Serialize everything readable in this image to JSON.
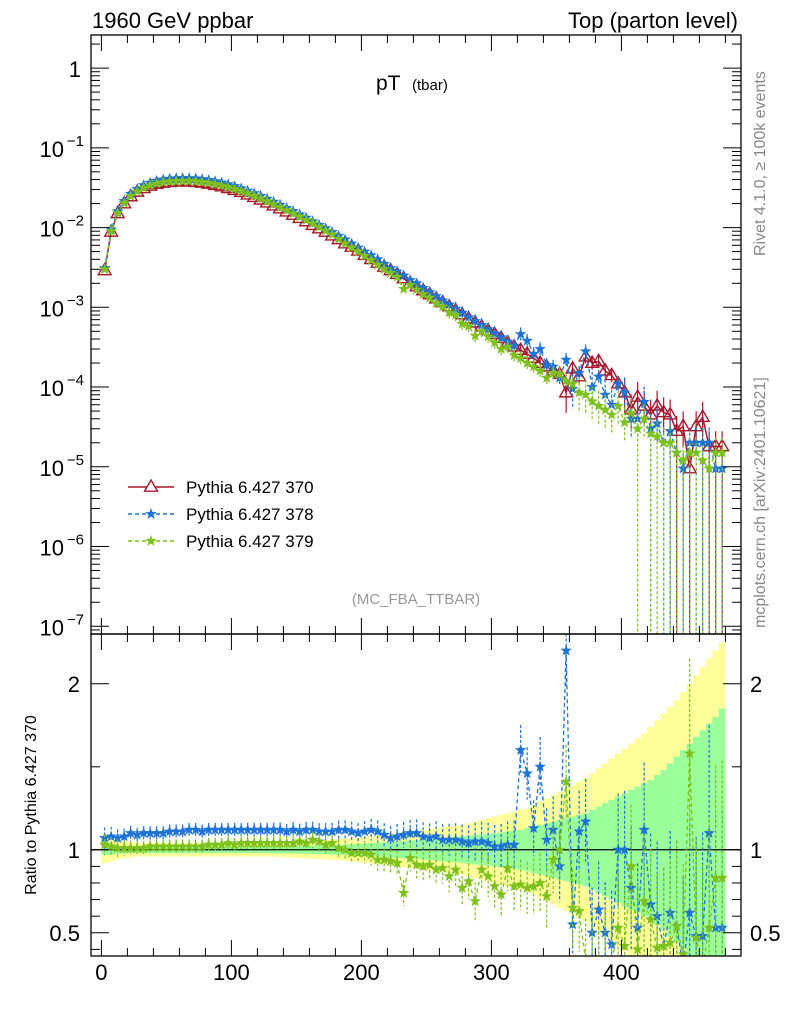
{
  "header": {
    "left": "1960 GeV ppbar",
    "right": "Top (parton level)"
  },
  "side_labels": {
    "rivet": "Rivet 4.1.0, ≥ 100k events",
    "mcplots": "mcplots.cern.ch [arXiv:2401.10621]"
  },
  "colors": {
    "s370": "#a8162c",
    "s378": "#1d74d6",
    "s379": "#7dc11c",
    "band_outer": "#ffff99",
    "band_inner": "#99ff99"
  },
  "chart_data": [
    {
      "panel": "main",
      "type": "line",
      "title": "pT",
      "title_sub": "(tbar)",
      "watermark": "(MC_FBA_TTBAR)",
      "xlabel": "",
      "ylabel": "",
      "yscale": "log",
      "xlim": [
        -8,
        492
      ],
      "ylim": [
        8e-08,
        2.6
      ],
      "ytick_labels": [
        {
          "base": "1",
          "exp": ""
        },
        {
          "base": "10",
          "exp": "−1"
        },
        {
          "base": "10",
          "exp": "−2"
        },
        {
          "base": "10",
          "exp": "−3"
        },
        {
          "base": "10",
          "exp": "−4"
        },
        {
          "base": "10",
          "exp": "−5"
        },
        {
          "base": "10",
          "exp": "−6"
        },
        {
          "base": "10",
          "exp": "−7"
        }
      ],
      "x": [
        2.5,
        7.5,
        12.5,
        17.5,
        22.5,
        27.5,
        32.5,
        37.5,
        42.5,
        47.5,
        52.5,
        57.5,
        62.5,
        67.5,
        72.5,
        77.5,
        82.5,
        87.5,
        92.5,
        97.5,
        102.5,
        107.5,
        112.5,
        117.5,
        122.5,
        127.5,
        132.5,
        137.5,
        142.5,
        147.5,
        152.5,
        157.5,
        162.5,
        167.5,
        172.5,
        177.5,
        182.5,
        187.5,
        192.5,
        197.5,
        202.5,
        207.5,
        212.5,
        217.5,
        222.5,
        227.5,
        232.5,
        237.5,
        242.5,
        247.5,
        252.5,
        257.5,
        262.5,
        267.5,
        272.5,
        277.5,
        282.5,
        287.5,
        292.5,
        297.5,
        302.5,
        307.5,
        312.5,
        317.5,
        322.5,
        327.5,
        332.5,
        337.5,
        342.5,
        347.5,
        352.5,
        357.5,
        362.5,
        367.5,
        372.5,
        377.5,
        382.5,
        387.5,
        392.5,
        397.5,
        402.5,
        407.5,
        412.5,
        417.5,
        422.5,
        427.5,
        432.5,
        437.5,
        442.5,
        447.5,
        452.5,
        457.5,
        462.5,
        467.5,
        472.5,
        477.5
      ],
      "series": [
        {
          "name": "Pythia 6.427 370",
          "marker": "triangle",
          "values": [
            0.0029,
            0.0088,
            0.015,
            0.02,
            0.0245,
            0.028,
            0.031,
            0.0332,
            0.035,
            0.0362,
            0.037,
            0.0374,
            0.0376,
            0.0374,
            0.037,
            0.0363,
            0.0352,
            0.034,
            0.0326,
            0.031,
            0.0294,
            0.0277,
            0.0258,
            0.024,
            0.0223,
            0.0205,
            0.0188,
            0.0173,
            0.0158,
            0.0144,
            0.0131,
            0.0119,
            0.0107,
            0.0097,
            0.0088,
            0.0079,
            0.0071,
            0.0063,
            0.0057,
            0.0051,
            0.0045,
            0.004,
            0.0036,
            0.0032,
            0.0029,
            0.0026,
            0.0023,
            0.002,
            0.00182,
            0.00162,
            0.00145,
            0.00128,
            0.00115,
            0.00102,
            0.00091,
            0.00081,
            0.00072,
            0.00064,
            0.00057,
            0.00051,
            0.00046,
            0.00041,
            0.00036,
            0.00032,
            0.00029,
            0.00026,
            0.00023,
            0.0002,
            0.00018,
            0.00016,
            0.000145,
            8.5e-05,
            0.00017,
            0.000135,
            0.00024,
            0.0002,
            0.00021,
            0.00016,
            0.00014,
            0.00011,
            8.5e-05,
            5.2e-05,
            7.5e-05,
            5.8e-05,
            4.5e-05,
            5.8e-05,
            4.8e-05,
            4.5e-05,
            2.8e-05,
            3.2e-05,
            9.5e-06,
            3.2e-05,
            4.2e-05,
            1.8e-05,
            1.8e-05,
            1.8e-05
          ]
        },
        {
          "name": "Pythia 6.427 378",
          "marker": "star",
          "values": [
            0.0031,
            0.0095,
            0.016,
            0.0215,
            0.0265,
            0.0305,
            0.034,
            0.0365,
            0.0385,
            0.04,
            0.041,
            0.0415,
            0.0418,
            0.0417,
            0.0413,
            0.0405,
            0.0394,
            0.0381,
            0.0366,
            0.0349,
            0.0331,
            0.0311,
            0.029,
            0.027,
            0.025,
            0.023,
            0.0211,
            0.0193,
            0.0176,
            0.0161,
            0.0146,
            0.0133,
            0.012,
            0.0108,
            0.0098,
            0.0088,
            0.0079,
            0.0071,
            0.0063,
            0.0056,
            0.005,
            0.0045,
            0.004,
            0.0035,
            0.0031,
            0.0028,
            0.0025,
            0.0022,
            0.002,
            0.00175,
            0.00155,
            0.00138,
            0.00122,
            0.00108,
            0.00096,
            0.00085,
            0.00075,
            0.00067,
            0.0006,
            0.00053,
            0.00047,
            0.00042,
            0.00037,
            0.00033,
            0.00046,
            0.00038,
            0.00026,
            0.0003,
            0.00019,
            0.00018,
            0.00013,
            0.00022,
            9.5e-05,
            0.00015,
            0.00028,
            0.0001,
            0.000135,
            8e-05,
            6e-05,
            0.00011,
            8.5e-05,
            4e-05,
            4e-05,
            6.5e-05,
            3e-05,
            3.5e-05,
            2e-05,
            2.8e-05,
            1.5e-05,
            9.5e-06,
            2e-05,
            2e-05,
            2e-05,
            2e-05,
            9.5e-06,
            9.5e-06
          ]
        },
        {
          "name": "Pythia 6.427 379",
          "marker": "star",
          "values": [
            0.003,
            0.009,
            0.0152,
            0.0203,
            0.0248,
            0.0284,
            0.0315,
            0.0338,
            0.0356,
            0.0369,
            0.0378,
            0.0382,
            0.0384,
            0.0383,
            0.0379,
            0.0372,
            0.0362,
            0.035,
            0.0336,
            0.0321,
            0.0304,
            0.0287,
            0.0268,
            0.0249,
            0.0231,
            0.0213,
            0.0196,
            0.018,
            0.0164,
            0.015,
            0.0137,
            0.0124,
            0.0113,
            0.0102,
            0.0091,
            0.0082,
            0.0072,
            0.0063,
            0.0056,
            0.005,
            0.0044,
            0.0039,
            0.0034,
            0.003,
            0.0027,
            0.0024,
            0.0017,
            0.0019,
            0.00166,
            0.00146,
            0.00132,
            0.00112,
            0.00102,
            0.00086,
            0.0008,
            0.00062,
            0.00058,
            0.00044,
            0.0005,
            0.00043,
            0.00036,
            0.0003,
            0.00032,
            0.00025,
            0.00023,
            0.0002,
            0.00018,
            0.00016,
            0.00013,
            0.00015,
            0.000145,
            0.00012,
            0.00011,
            8.5e-05,
            8e-05,
            6.6e-05,
            5.8e-05,
            5.2e-05,
            4.5e-05,
            5.8e-05,
            3.6e-05,
            4.7e-05,
            3e-05,
            4e-05,
            2.6e-05,
            2.4e-05,
            2e-05,
            2e-05,
            1.5e-05,
            1.2e-05,
            1.5e-05,
            1.5e-05,
            1.2e-05,
            9.5e-06,
            1.5e-05,
            1.5e-05
          ]
        }
      ],
      "legend": [
        "Pythia 6.427 370",
        "Pythia 6.427 378",
        "Pythia 6.427 379"
      ],
      "legend_position": "bottom-left"
    },
    {
      "panel": "ratio",
      "type": "line",
      "ylabel": "Ratio to Pythia 6.427 370",
      "xlim": [
        -8,
        492
      ],
      "ylim": [
        0.36,
        2.3
      ],
      "xtick_labels": [
        "0",
        "100",
        "200",
        "300",
        "400"
      ],
      "ytick_labels": [
        "0.5",
        "1",
        "2"
      ],
      "reference_line": 1,
      "bands": {
        "inner_halfwidth": [
          0.03,
          0.03,
          0.025,
          0.022,
          0.02,
          0.02,
          0.02,
          0.02,
          0.02,
          0.02,
          0.02,
          0.02,
          0.02,
          0.02,
          0.02,
          0.02,
          0.02,
          0.02,
          0.02,
          0.02,
          0.02,
          0.02,
          0.02,
          0.02,
          0.02,
          0.02,
          0.022,
          0.022,
          0.022,
          0.022,
          0.024,
          0.024,
          0.025,
          0.026,
          0.027,
          0.028,
          0.03,
          0.032,
          0.034,
          0.036,
          0.038,
          0.04,
          0.042,
          0.045,
          0.047,
          0.05,
          0.052,
          0.055,
          0.057,
          0.06,
          0.063,
          0.066,
          0.07,
          0.073,
          0.076,
          0.08,
          0.084,
          0.088,
          0.092,
          0.096,
          0.1,
          0.105,
          0.11,
          0.115,
          0.12,
          0.13,
          0.14,
          0.15,
          0.16,
          0.17,
          0.18,
          0.19,
          0.2,
          0.21,
          0.22,
          0.24,
          0.26,
          0.28,
          0.3,
          0.32,
          0.34,
          0.36,
          0.38,
          0.4,
          0.42,
          0.45,
          0.48,
          0.52,
          0.56,
          0.6,
          0.64,
          0.68,
          0.72,
          0.76,
          0.8,
          0.85
        ],
        "outer_halfwidth": [
          0.08,
          0.07,
          0.06,
          0.05,
          0.045,
          0.04,
          0.04,
          0.04,
          0.04,
          0.04,
          0.04,
          0.04,
          0.04,
          0.04,
          0.04,
          0.04,
          0.04,
          0.04,
          0.04,
          0.04,
          0.04,
          0.04,
          0.04,
          0.04,
          0.04,
          0.04,
          0.042,
          0.044,
          0.046,
          0.048,
          0.05,
          0.052,
          0.054,
          0.056,
          0.058,
          0.06,
          0.063,
          0.066,
          0.07,
          0.074,
          0.078,
          0.082,
          0.086,
          0.09,
          0.095,
          0.1,
          0.105,
          0.11,
          0.115,
          0.12,
          0.125,
          0.13,
          0.135,
          0.14,
          0.145,
          0.15,
          0.16,
          0.17,
          0.18,
          0.19,
          0.2,
          0.21,
          0.22,
          0.23,
          0.24,
          0.25,
          0.27,
          0.29,
          0.31,
          0.33,
          0.35,
          0.37,
          0.39,
          0.41,
          0.43,
          0.46,
          0.49,
          0.52,
          0.55,
          0.58,
          0.61,
          0.64,
          0.67,
          0.7,
          0.74,
          0.78,
          0.82,
          0.86,
          0.9,
          0.95,
          1.0,
          1.05,
          1.1,
          1.15,
          1.2,
          1.25
        ]
      },
      "series": [
        {
          "name": "Pythia 6.427 378",
          "values": [
            1.07,
            1.08,
            1.07,
            1.08,
            1.1,
            1.09,
            1.1,
            1.1,
            1.1,
            1.1,
            1.11,
            1.11,
            1.11,
            1.12,
            1.12,
            1.11,
            1.12,
            1.12,
            1.12,
            1.12,
            1.12,
            1.12,
            1.12,
            1.12,
            1.12,
            1.12,
            1.12,
            1.12,
            1.11,
            1.12,
            1.11,
            1.12,
            1.12,
            1.11,
            1.11,
            1.11,
            1.12,
            1.12,
            1.11,
            1.1,
            1.11,
            1.12,
            1.11,
            1.09,
            1.07,
            1.08,
            1.09,
            1.1,
            1.1,
            1.08,
            1.07,
            1.08,
            1.06,
            1.06,
            1.06,
            1.05,
            1.04,
            1.05,
            1.05,
            1.04,
            1.02,
            1.02,
            1.03,
            1.03,
            1.6,
            1.46,
            1.13,
            1.5,
            1.06,
            1.12,
            0.9,
            2.2,
            0.55,
            1.11,
            1.17,
            0.5,
            0.64,
            0.5,
            0.43,
            1.0,
            1.0,
            0.77,
            0.53,
            1.12,
            0.67,
            0.6,
            0.42,
            0.62,
            0.54,
            0.3,
            0.62,
            0.48,
            0.48,
            1.1,
            0.53,
            0.53
          ]
        },
        {
          "name": "Pythia 6.427 379",
          "values": [
            1.03,
            1.02,
            1.01,
            1.01,
            1.01,
            1.01,
            1.01,
            1.02,
            1.02,
            1.02,
            1.02,
            1.02,
            1.02,
            1.02,
            1.02,
            1.02,
            1.03,
            1.03,
            1.03,
            1.04,
            1.03,
            1.04,
            1.04,
            1.04,
            1.04,
            1.04,
            1.04,
            1.04,
            1.04,
            1.04,
            1.05,
            1.04,
            1.06,
            1.05,
            1.03,
            1.04,
            1.01,
            1.0,
            0.98,
            0.98,
            0.98,
            0.97,
            0.94,
            0.94,
            0.93,
            0.92,
            0.74,
            0.95,
            0.91,
            0.9,
            0.91,
            0.88,
            0.89,
            0.84,
            0.88,
            0.77,
            0.81,
            0.69,
            0.88,
            0.84,
            0.78,
            0.73,
            0.89,
            0.78,
            0.79,
            0.77,
            0.78,
            0.8,
            0.72,
            0.94,
            1.0,
            1.41,
            0.65,
            0.63,
            0.33,
            0.33,
            0.28,
            0.33,
            0.32,
            0.53,
            0.42,
            0.9,
            0.4,
            0.69,
            0.58,
            0.41,
            0.42,
            0.44,
            0.54,
            0.37,
            1.58,
            0.47,
            0.29,
            0.53,
            0.83,
            0.83
          ]
        }
      ]
    }
  ]
}
